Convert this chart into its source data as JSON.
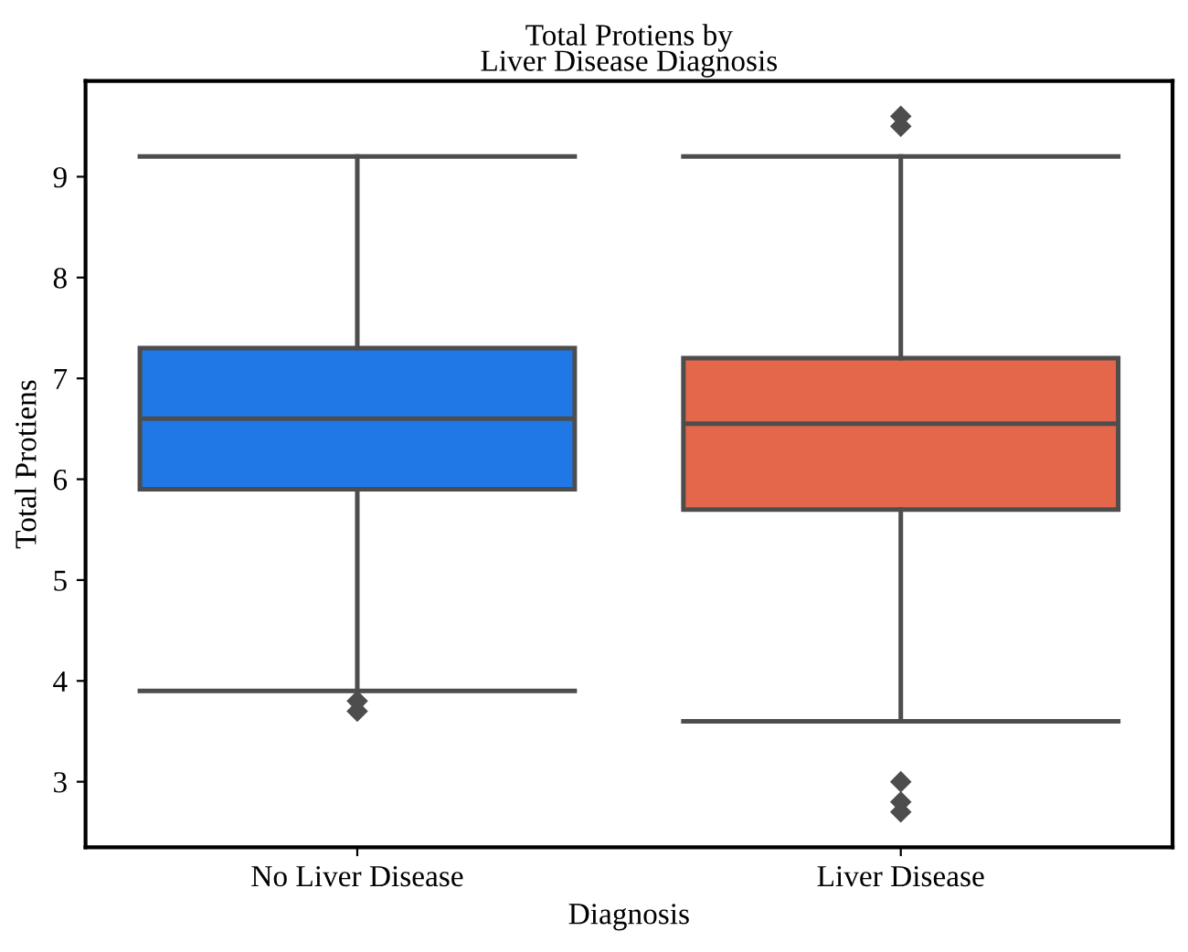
{
  "chart_data": {
    "type": "box",
    "title": "Total Protiens by\nLiver Disease Diagnosis",
    "xlabel": "Diagnosis",
    "ylabel": "Total Protiens",
    "categories": [
      "No Liver Disease",
      "Liver Disease"
    ],
    "colors": [
      "#1f78e6",
      "#e5674b"
    ],
    "boxes": [
      {
        "low": 3.9,
        "q1": 5.9,
        "median": 6.6,
        "q3": 7.3,
        "high": 9.2,
        "outliers": [
          3.8,
          3.7
        ]
      },
      {
        "low": 3.6,
        "q1": 5.7,
        "median": 6.55,
        "q3": 7.2,
        "high": 9.2,
        "outliers": [
          9.6,
          9.5,
          3.0,
          2.8,
          2.7
        ]
      }
    ],
    "ylim": [
      2.35,
      9.95
    ],
    "yticks": [
      3,
      4,
      5,
      6,
      7,
      8,
      9
    ],
    "grid": false,
    "marker": "diamond"
  }
}
